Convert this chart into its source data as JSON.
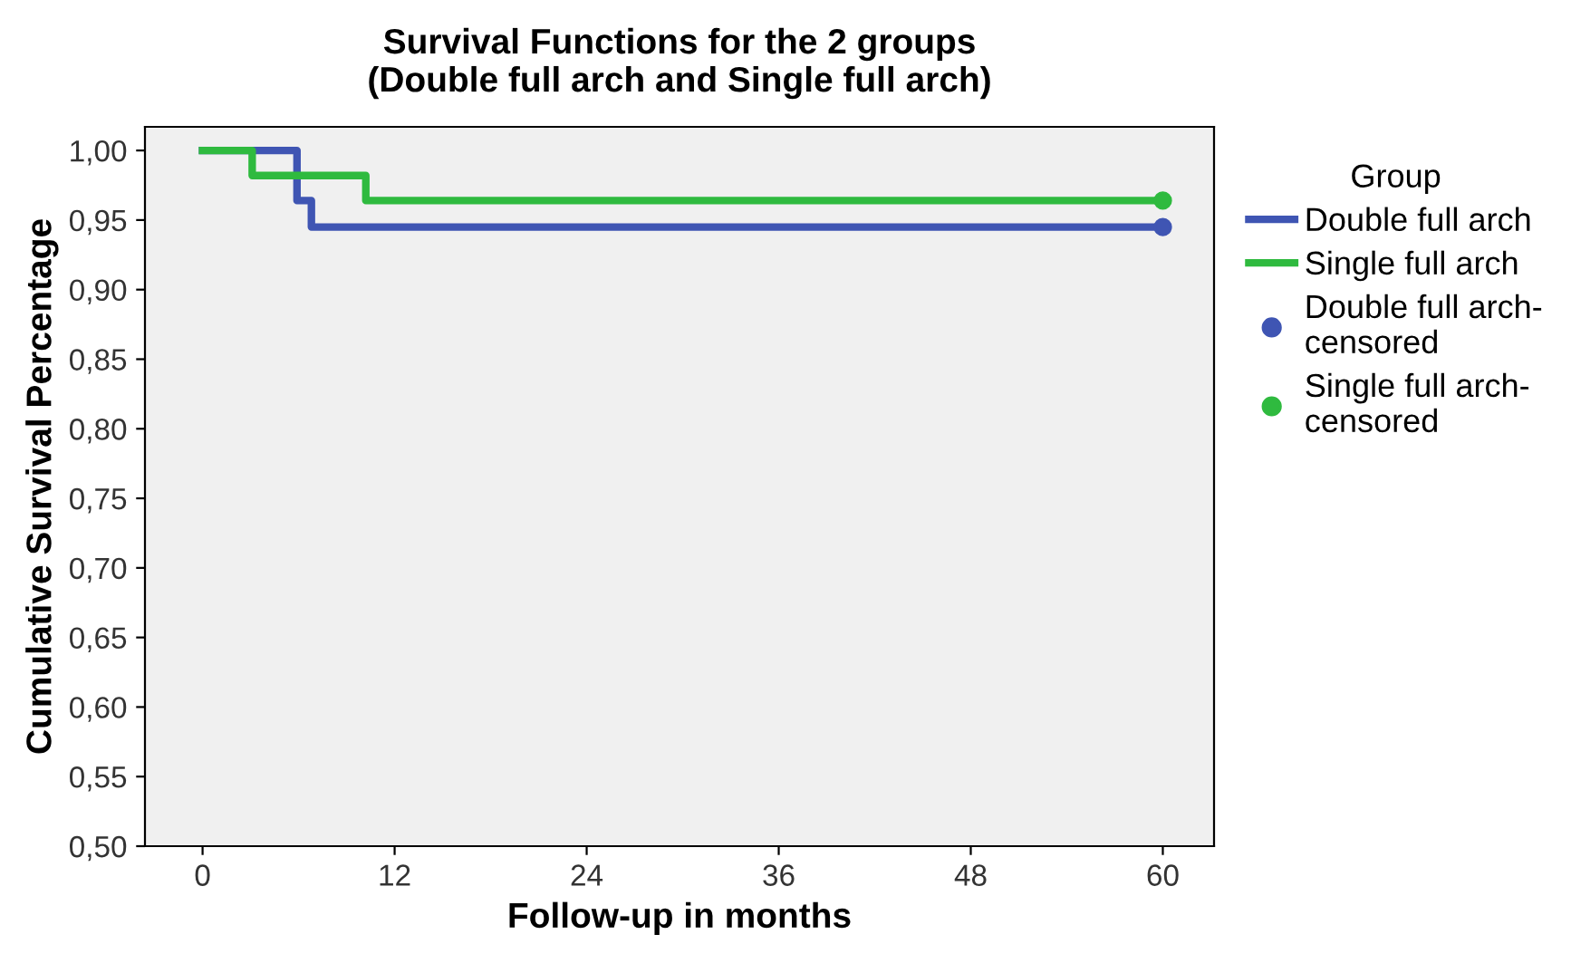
{
  "chart_data": {
    "type": "step",
    "title": "Survival Functions for the 2 groups\n(Double full arch and Single full arch)",
    "xlabel": "Follow-up in months",
    "ylabel": "Cumulative Survival Percentage",
    "legend_title": "Group",
    "legend": "right",
    "xlim": [
      -3.6,
      63.2
    ],
    "ylim": [
      0.5,
      1.017
    ],
    "xticks": [
      0,
      12,
      24,
      36,
      48,
      60
    ],
    "yticks": [
      {
        "value": 0.5,
        "label": "0,50"
      },
      {
        "value": 0.55,
        "label": "0,55"
      },
      {
        "value": 0.6,
        "label": "0,60"
      },
      {
        "value": 0.65,
        "label": "0,65"
      },
      {
        "value": 0.7,
        "label": "0,70"
      },
      {
        "value": 0.75,
        "label": "0,75"
      },
      {
        "value": 0.8,
        "label": "0,80"
      },
      {
        "value": 0.85,
        "label": "0,85"
      },
      {
        "value": 0.9,
        "label": "0,90"
      },
      {
        "value": 0.95,
        "label": "0,95"
      },
      {
        "value": 1.0,
        "label": "1,00"
      }
    ],
    "grid": false,
    "series": [
      {
        "name": "Double full arch",
        "color": "#3f55b3",
        "x": [
          0,
          5.9,
          6.8,
          60
        ],
        "values": [
          1.0,
          0.964,
          0.945,
          0.945
        ]
      },
      {
        "name": "Single full arch",
        "color": "#2fba3f",
        "x": [
          0,
          3.1,
          10.2,
          60
        ],
        "values": [
          1.0,
          0.982,
          0.964,
          0.964
        ]
      },
      {
        "name": "Double full arch-\ncensored",
        "type": "scatter",
        "marker": "circle",
        "color": "#3f55b3",
        "x": [
          60
        ],
        "values": [
          0.945
        ]
      },
      {
        "name": "Single full arch-\ncensored",
        "type": "scatter",
        "marker": "circle",
        "color": "#2fba3f",
        "x": [
          60
        ],
        "values": [
          0.964
        ]
      }
    ]
  }
}
